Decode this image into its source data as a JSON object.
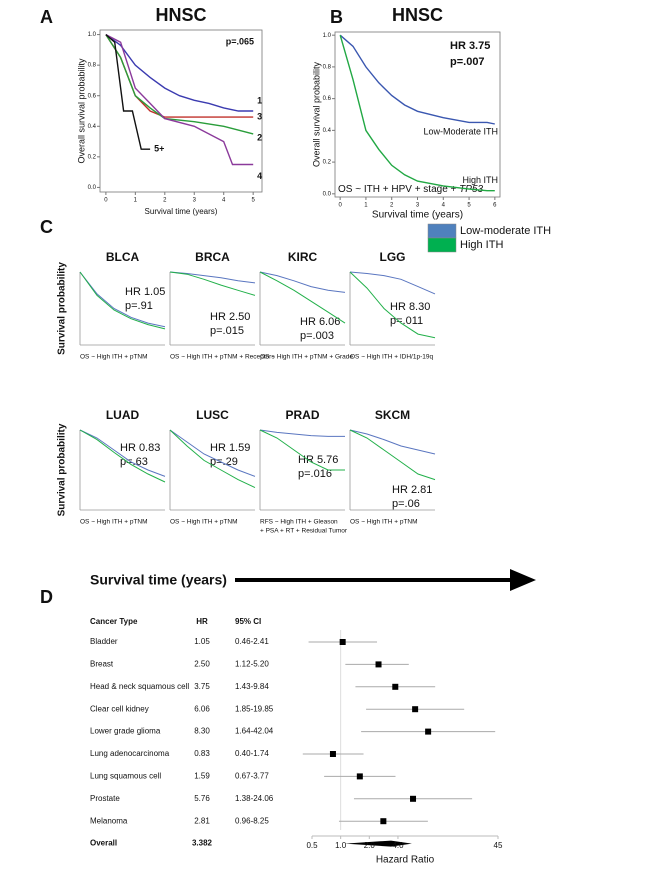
{
  "panel_labels": [
    "A",
    "B",
    "C",
    "D"
  ],
  "arrow_label": "Survival time (years)",
  "chart_data": [
    {
      "type": "km",
      "title": "HNSC",
      "ylabel": "Overall survival probability",
      "xlabel": "Survival time (years)",
      "annotations": [
        "p=.065"
      ],
      "xlim": [
        -0.2,
        5.3
      ],
      "ylim": [
        -0.03,
        1.03
      ],
      "xticks": [
        0,
        1,
        2,
        3,
        4,
        5
      ],
      "yticks": [
        {
          "value": 0,
          "label": "0.0"
        },
        {
          "value": 0.2,
          "label": "0.2"
        },
        {
          "value": 0.4,
          "label": "0.4"
        },
        {
          "value": 0.6,
          "label": "0.6"
        },
        {
          "value": 0.8,
          "label": "0.8"
        },
        {
          "value": 1,
          "label": "1.0"
        }
      ],
      "series": [
        {
          "name": "1",
          "color": "#3b3bb0",
          "x": [
            0,
            0.5,
            1,
            1.5,
            2,
            2.5,
            3,
            3.5,
            4,
            4.5,
            5
          ],
          "values": [
            1,
            0.93,
            0.8,
            0.72,
            0.65,
            0.6,
            0.57,
            0.55,
            0.52,
            0.5,
            0.5
          ]
        },
        {
          "name": "3",
          "color": "#c0302a",
          "x": [
            0,
            0.5,
            1,
            1.5,
            2,
            3,
            4,
            5
          ],
          "values": [
            1,
            0.85,
            0.6,
            0.5,
            0.46,
            0.46,
            0.46,
            0.46
          ]
        },
        {
          "name": "2",
          "color": "#2a9d3a",
          "x": [
            0,
            0.5,
            1,
            1.5,
            2,
            3,
            4,
            5
          ],
          "values": [
            1,
            0.85,
            0.6,
            0.52,
            0.45,
            0.43,
            0.4,
            0.35
          ]
        },
        {
          "name": "4",
          "color": "#8b3a9b",
          "x": [
            0,
            0.5,
            1,
            1.5,
            2,
            3,
            4,
            4.3,
            5
          ],
          "values": [
            1,
            0.95,
            0.65,
            0.55,
            0.45,
            0.4,
            0.3,
            0.15,
            0.15
          ]
        },
        {
          "name": "5+",
          "color": "#111111",
          "x": [
            0,
            0.3,
            0.6,
            0.9,
            1.2,
            1.5
          ],
          "values": [
            1,
            0.95,
            0.5,
            0.5,
            0.25,
            0.25
          ]
        }
      ]
    },
    {
      "type": "km",
      "title": "HNSC",
      "ylabel": "Overall survival probability",
      "xlabel": "Survival time (years)",
      "annotations": [
        "HR 3.75",
        "p=.007"
      ],
      "model": "OS ~ ITH + HPV + stage + ",
      "model_gene": "TP53",
      "xlim": [
        -0.2,
        6.2
      ],
      "ylim": [
        -0.02,
        1.02
      ],
      "xticks": [
        0,
        1,
        2,
        3,
        4,
        5,
        6
      ],
      "yticks": [
        {
          "value": 0,
          "label": "0.0"
        },
        {
          "value": 0.2,
          "label": "0.2"
        },
        {
          "value": 0.4,
          "label": "0.4"
        },
        {
          "value": 0.6,
          "label": "0.6"
        },
        {
          "value": 0.8,
          "label": "0.8"
        },
        {
          "value": 1,
          "label": "1.0"
        }
      ],
      "x": [
        0,
        0.5,
        1,
        1.5,
        2,
        2.5,
        3,
        4,
        5,
        5.7,
        6
      ],
      "series": [
        {
          "name": "Low-Moderate ITH",
          "color": "#3a57b0",
          "values": [
            1,
            0.93,
            0.8,
            0.7,
            0.62,
            0.56,
            0.52,
            0.48,
            0.45,
            0.45,
            0.44
          ]
        },
        {
          "name": "High ITH",
          "color": "#22a844",
          "values": [
            1,
            0.72,
            0.4,
            0.28,
            0.18,
            0.12,
            0.08,
            0.05,
            0.03,
            0.02,
            0.02
          ]
        }
      ]
    },
    {
      "type": "km",
      "title": "BLCA",
      "ylabel": "Survival probability",
      "annotations": [
        "HR 1.05",
        "p=.91"
      ],
      "footnote": [
        "OS ~ High ITH + pTNM"
      ],
      "xlim": [
        0,
        10
      ],
      "ylim": [
        0,
        1
      ],
      "x": [
        0,
        2,
        4,
        6,
        8,
        10
      ],
      "series": [
        {
          "name": "Low-moderate ITH",
          "color": "#5a76c0",
          "values": [
            1,
            0.7,
            0.5,
            0.38,
            0.3,
            0.25
          ]
        },
        {
          "name": "High ITH",
          "color": "#22b04a",
          "values": [
            1,
            0.68,
            0.48,
            0.36,
            0.28,
            0.22
          ]
        }
      ]
    },
    {
      "type": "km",
      "title": "BRCA",
      "annotations": [
        "HR 2.50",
        "p=.015"
      ],
      "footnote": [
        "OS ~ High ITH + pTNM + Receptors"
      ],
      "xlim": [
        0,
        10
      ],
      "ylim": [
        0,
        1
      ],
      "x": [
        0,
        2,
        4,
        6,
        8,
        10
      ],
      "series": [
        {
          "name": "Low-moderate ITH",
          "color": "#5a76c0",
          "values": [
            1,
            0.98,
            0.95,
            0.92,
            0.88,
            0.85
          ]
        },
        {
          "name": "High ITH",
          "color": "#22b04a",
          "values": [
            1,
            0.97,
            0.9,
            0.82,
            0.75,
            0.68
          ]
        }
      ]
    },
    {
      "type": "km",
      "title": "KIRC",
      "annotations": [
        "HR 6.06",
        "p=.003"
      ],
      "footnote": [
        "OS ~ High ITH + pTNM + Grade"
      ],
      "xlim": [
        0,
        10
      ],
      "ylim": [
        0,
        1
      ],
      "x": [
        0,
        2,
        4,
        6,
        8,
        10
      ],
      "series": [
        {
          "name": "Low-moderate ITH",
          "color": "#5a76c0",
          "values": [
            1,
            0.95,
            0.88,
            0.8,
            0.75,
            0.72
          ]
        },
        {
          "name": "High ITH",
          "color": "#22b04a",
          "values": [
            1,
            0.88,
            0.75,
            0.6,
            0.45,
            0.3
          ]
        }
      ]
    },
    {
      "type": "km",
      "title": "LGG",
      "annotations": [
        "HR 8.30",
        "p=.011"
      ],
      "footnote": [
        "OS ~ High  ITH + IDH/1p-19q"
      ],
      "xlim": [
        0,
        10
      ],
      "ylim": [
        0,
        1
      ],
      "x": [
        0,
        2,
        4,
        6,
        8,
        10
      ],
      "series": [
        {
          "name": "Low-moderate ITH",
          "color": "#5a76c0",
          "values": [
            1,
            0.98,
            0.95,
            0.9,
            0.8,
            0.7
          ]
        },
        {
          "name": "High ITH",
          "color": "#22b04a",
          "values": [
            1,
            0.78,
            0.5,
            0.3,
            0.15,
            0.1
          ]
        }
      ]
    },
    {
      "type": "km",
      "title": "LUAD",
      "ylabel": "Survival probability",
      "annotations": [
        "HR 0.83",
        "p=.63"
      ],
      "footnote": [
        "OS ~ High ITH + pTNM"
      ],
      "xlim": [
        0,
        10
      ],
      "ylim": [
        0,
        1
      ],
      "x": [
        0,
        2,
        4,
        6,
        8,
        10
      ],
      "series": [
        {
          "name": "Low-moderate ITH",
          "color": "#5a76c0",
          "values": [
            1,
            0.9,
            0.75,
            0.6,
            0.5,
            0.42
          ]
        },
        {
          "name": "High ITH",
          "color": "#22b04a",
          "values": [
            1,
            0.88,
            0.72,
            0.57,
            0.45,
            0.35
          ]
        }
      ]
    },
    {
      "type": "km",
      "title": "LUSC",
      "annotations": [
        "HR 1.59",
        "p=.29"
      ],
      "footnote": [
        "OS ~ High ITH + pTNM"
      ],
      "xlim": [
        0,
        10
      ],
      "ylim": [
        0,
        1
      ],
      "x": [
        0,
        2,
        4,
        6,
        8,
        10
      ],
      "series": [
        {
          "name": "Low-moderate ITH",
          "color": "#5a76c0",
          "values": [
            1,
            0.85,
            0.7,
            0.6,
            0.5,
            0.42
          ]
        },
        {
          "name": "High ITH",
          "color": "#22b04a",
          "values": [
            1,
            0.8,
            0.62,
            0.5,
            0.38,
            0.28
          ]
        }
      ]
    },
    {
      "type": "km",
      "title": "PRAD",
      "annotations": [
        "HR 5.76",
        "p=.016"
      ],
      "footnote": [
        "RFS ~ High ITH + Gleason",
        "+ PSA + RT + Residual Tumor"
      ],
      "xlim": [
        0,
        10
      ],
      "ylim": [
        0,
        1
      ],
      "x": [
        0,
        2,
        4,
        6,
        8,
        10
      ],
      "series": [
        {
          "name": "Low-moderate ITH",
          "color": "#5a76c0",
          "values": [
            1,
            0.97,
            0.95,
            0.93,
            0.92,
            0.92
          ]
        },
        {
          "name": "High ITH",
          "color": "#22b04a",
          "values": [
            1,
            0.9,
            0.75,
            0.6,
            0.5,
            0.5
          ]
        }
      ]
    },
    {
      "type": "km",
      "title": "SKCM",
      "annotations": [
        "HR 2.81",
        "p=.06"
      ],
      "footnote": [
        "OS ~ High ITH + pTNM"
      ],
      "xlim": [
        0,
        10
      ],
      "ylim": [
        0,
        1
      ],
      "x": [
        0,
        2,
        4,
        6,
        8,
        10
      ],
      "series": [
        {
          "name": "Low-moderate ITH",
          "color": "#5a76c0",
          "values": [
            1,
            0.95,
            0.88,
            0.8,
            0.75,
            0.7
          ]
        },
        {
          "name": "High ITH",
          "color": "#22b04a",
          "values": [
            1,
            0.9,
            0.75,
            0.6,
            0.45,
            0.38
          ]
        }
      ]
    },
    {
      "type": "forest",
      "columns": [
        "Cancer Type",
        "HR",
        "95% CI"
      ],
      "xlabel": "Hazard Ratio",
      "log_x": true,
      "xlim": [
        0.5,
        45
      ],
      "xticks": [
        0.5,
        {
          "value": 1,
          "label": "1.0"
        },
        {
          "value": 2,
          "label": "2.0"
        },
        {
          "value": 4,
          "label": "4.0"
        },
        45
      ],
      "categories": [
        "Bladder",
        "Breast",
        "Head & neck squamous cell",
        "Clear cell kidney",
        "Lower grade glioma",
        "Lung adenocarcinoma",
        "Lung squamous cell",
        "Prostate",
        "Melanoma"
      ],
      "values": [
        1.05,
        2.5,
        3.75,
        6.06,
        8.3,
        0.83,
        1.59,
        5.76,
        2.81
      ],
      "value_labels": [
        "1.05",
        "2.50",
        "3.75",
        "6.06",
        "8.30",
        "0.83",
        "1.59",
        "5.76",
        "2.81"
      ],
      "ci_low": [
        0.46,
        1.12,
        1.43,
        1.85,
        1.64,
        0.4,
        0.67,
        1.38,
        0.96
      ],
      "ci_high": [
        2.41,
        5.2,
        9.84,
        19.85,
        42.04,
        1.74,
        3.77,
        24.06,
        8.25
      ],
      "ci_labels": [
        "0.46-2.41",
        "1.12-5.20",
        "1.43-9.84",
        "1.85-19.85",
        "1.64-42.04",
        "0.40-1.74",
        "0.67-3.77",
        "1.38-24.06",
        "0.96-8.25"
      ],
      "overall": {
        "label": "Overall",
        "value": 3.382,
        "ci_low": 1.11,
        "ci_high": 5.6
      }
    }
  ]
}
